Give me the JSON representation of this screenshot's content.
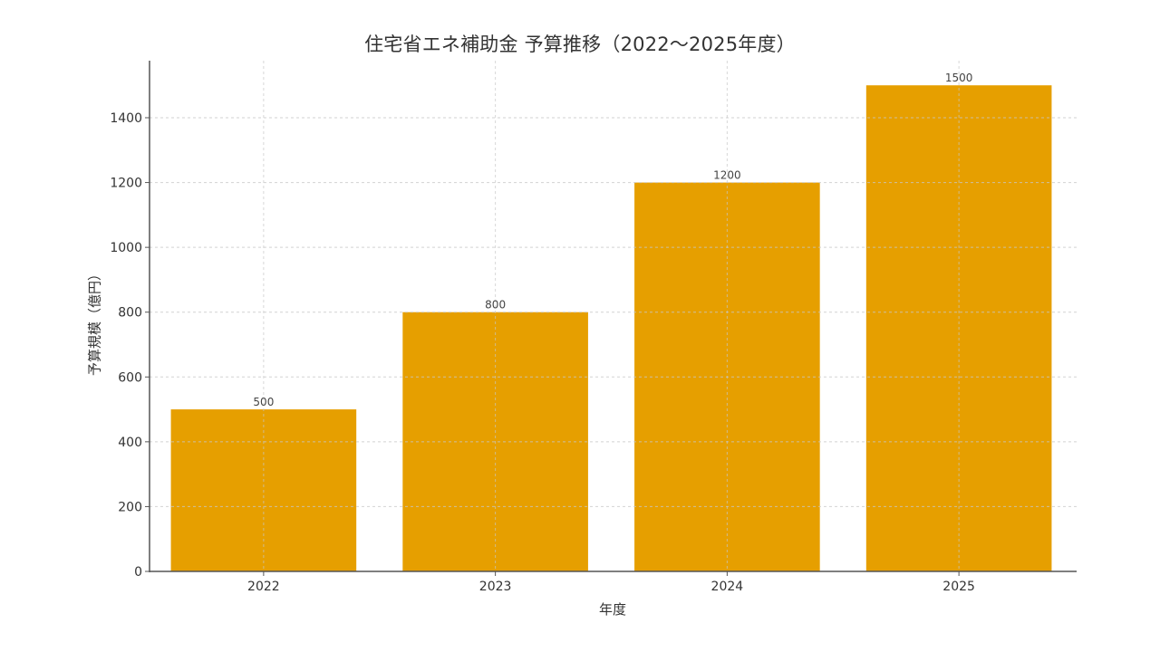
{
  "chart_data": {
    "type": "bar",
    "title": "住宅省エネ補助金 予算推移（2022〜2025年度）",
    "xlabel": "年度",
    "ylabel": "予算規模（億円）",
    "categories": [
      "2022",
      "2023",
      "2024",
      "2025"
    ],
    "values": [
      500,
      800,
      1200,
      1500
    ],
    "data_labels": [
      "500",
      "800",
      "1200",
      "1500"
    ],
    "ylim": [
      0,
      1570
    ],
    "yticks": [
      0,
      200,
      400,
      600,
      800,
      1000,
      1200,
      1400
    ],
    "grid": true,
    "grid_style": "dashed",
    "legend": null,
    "bar_color": "#E69F00"
  }
}
